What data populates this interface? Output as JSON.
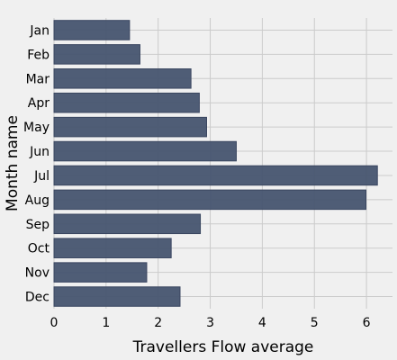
{
  "chart_data": {
    "type": "bar",
    "orientation": "horizontal",
    "categories": [
      "Jan",
      "Feb",
      "Mar",
      "Apr",
      "May",
      "Jun",
      "Jul",
      "Aug",
      "Sep",
      "Oct",
      "Nov",
      "Dec"
    ],
    "values": [
      1.45,
      1.65,
      2.63,
      2.79,
      2.93,
      3.5,
      6.21,
      5.99,
      2.81,
      2.25,
      1.78,
      2.42
    ],
    "xlabel": "Travellers Flow average",
    "ylabel": "Month name",
    "xlim": [
      0,
      6.5
    ],
    "xticks": [
      "0",
      "1",
      "2",
      "3",
      "4",
      "5",
      "6"
    ],
    "grid": true,
    "colors": {
      "bar": "#46546f",
      "bar_edge": "#3a4660",
      "grid": "#cbcbcb",
      "background": "#f0f0f0"
    }
  }
}
